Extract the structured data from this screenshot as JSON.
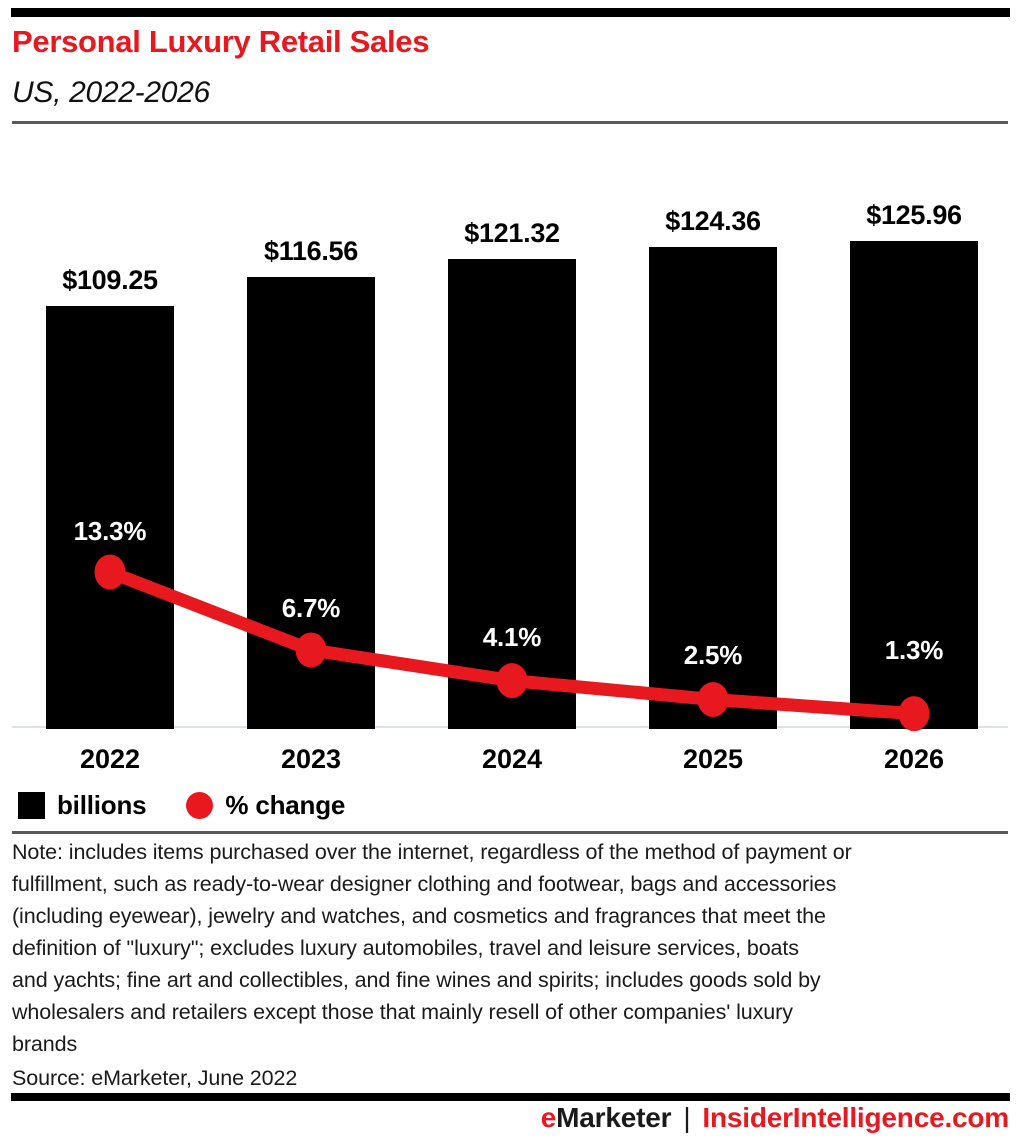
{
  "header": {
    "title": "Personal Luxury Retail Sales",
    "subtitle": "US, 2022-2026"
  },
  "chart_data": {
    "type": "bar+line",
    "categories": [
      "2022",
      "2023",
      "2024",
      "2025",
      "2026"
    ],
    "series": [
      {
        "name": "billions",
        "type": "bar",
        "values": [
          109.25,
          116.56,
          121.32,
          124.36,
          125.96
        ],
        "labels": [
          "$109.25",
          "$116.56",
          "$121.32",
          "$124.36",
          "$125.96"
        ],
        "color": "#000000"
      },
      {
        "name": "% change",
        "type": "line",
        "values": [
          13.3,
          6.7,
          4.1,
          2.5,
          1.3
        ],
        "labels": [
          "13.3%",
          "6.7%",
          "4.1%",
          "2.5%",
          "1.3%"
        ],
        "color": "#e7191f"
      }
    ],
    "title": "Personal Luxury Retail Sales",
    "xlabel": "",
    "ylabel": "",
    "grid": false,
    "legend_position": "bottom",
    "bar_axis_range": [
      0,
      130
    ],
    "line_axis_range": [
      0,
      15
    ]
  },
  "legend": {
    "items": [
      {
        "label": "billions",
        "swatch": "black-square"
      },
      {
        "label": "% change",
        "swatch": "red-circle"
      }
    ]
  },
  "note": "Note: includes items purchased over the internet, regardless of the method of payment or\nfulfillment, such as ready-to-wear designer clothing and footwear, bags and accessories\n(including eyewear), jewelry and watches, and cosmetics and fragrances that meet the\ndefinition of \"luxury\"; excludes luxury automobiles, travel and leisure services, boats\nand yachts; fine art and collectibles, and fine wines and spirits; includes goods sold by\nwholesalers and retailers except those that mainly resell of other companies' luxury\nbrands",
  "source": "Source: eMarketer, June 2022",
  "footer": {
    "brand_prefix": "e",
    "brand_rest": "Marketer",
    "separator": "|",
    "site": "InsiderIntelligence.com"
  },
  "colors": {
    "accent_red": "#e7191f",
    "bar_black": "#000000",
    "baseline_gray": "#dde1ec",
    "divider_gray": "#595959"
  }
}
